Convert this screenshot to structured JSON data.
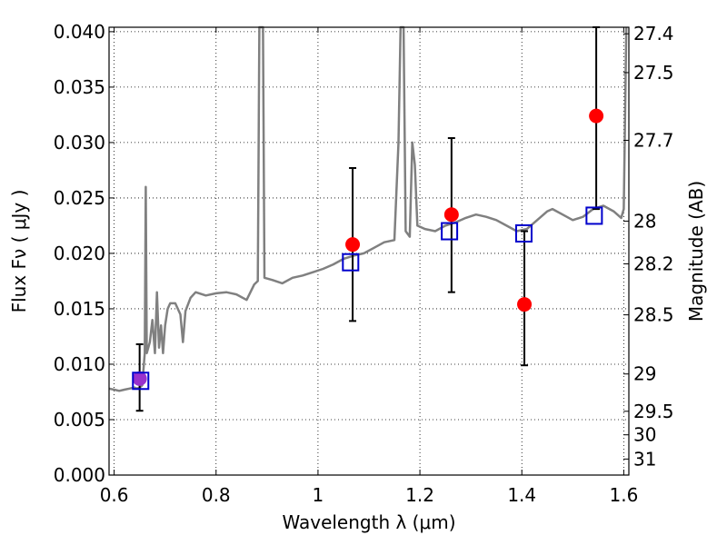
{
  "chart_data": {
    "type": "scatter",
    "xlabel": "Wavelength  λ (μm)",
    "ylabel": "Flux  Fν ( μJy )",
    "ylabel_right": "Magnitude (AB)",
    "xlim": [
      0.59,
      1.61
    ],
    "ylim": [
      0.0,
      0.0404
    ],
    "grid": true,
    "x_ticks": [
      0.6,
      0.8,
      1.0,
      1.2,
      1.4,
      1.6
    ],
    "x_tick_labels": [
      "0.6",
      "0.8",
      "1",
      "1.2",
      "1.4",
      "1.6"
    ],
    "y_ticks": [
      0.0,
      0.005,
      0.01,
      0.015,
      0.02,
      0.025,
      0.03,
      0.035,
      0.04
    ],
    "y_tick_labels": [
      "0.000",
      "0.005",
      "0.010",
      "0.015",
      "0.020",
      "0.025",
      "0.030",
      "0.035",
      "0.040"
    ],
    "mag_ticks": [
      {
        "mag": 27.4,
        "label": "27.4"
      },
      {
        "mag": 27.5,
        "label": "27.5"
      },
      {
        "mag": 27.7,
        "label": "27.7"
      },
      {
        "mag": 28.0,
        "label": "28"
      },
      {
        "mag": 28.2,
        "label": "28.2"
      },
      {
        "mag": 28.5,
        "label": "28.5"
      },
      {
        "mag": 29.0,
        "label": "29"
      },
      {
        "mag": 29.5,
        "label": "29.5"
      },
      {
        "mag": 30.0,
        "label": "30"
      },
      {
        "mag": 31.0,
        "label": "31"
      }
    ],
    "colors": {
      "sed": "#808080",
      "observed": "#ff0000",
      "observed_overlap": "#9932cc",
      "model_box": "#0000cc",
      "errorbar": "#000000",
      "grid": "#000000"
    },
    "model_sed": [
      [
        0.59,
        0.0078
      ],
      [
        0.6,
        0.0077
      ],
      [
        0.61,
        0.0076
      ],
      [
        0.62,
        0.0077
      ],
      [
        0.63,
        0.0078
      ],
      [
        0.64,
        0.0079
      ],
      [
        0.645,
        0.0078
      ],
      [
        0.65,
        0.0079
      ],
      [
        0.655,
        0.0081
      ],
      [
        0.66,
        0.011
      ],
      [
        0.662,
        0.026
      ],
      [
        0.664,
        0.011
      ],
      [
        0.67,
        0.012
      ],
      [
        0.675,
        0.014
      ],
      [
        0.68,
        0.011
      ],
      [
        0.684,
        0.0165
      ],
      [
        0.688,
        0.0115
      ],
      [
        0.692,
        0.0135
      ],
      [
        0.696,
        0.011
      ],
      [
        0.7,
        0.0135
      ],
      [
        0.705,
        0.015
      ],
      [
        0.71,
        0.0155
      ],
      [
        0.72,
        0.0155
      ],
      [
        0.73,
        0.0145
      ],
      [
        0.735,
        0.012
      ],
      [
        0.74,
        0.0148
      ],
      [
        0.75,
        0.016
      ],
      [
        0.76,
        0.0165
      ],
      [
        0.78,
        0.0162
      ],
      [
        0.8,
        0.0164
      ],
      [
        0.82,
        0.0165
      ],
      [
        0.84,
        0.0163
      ],
      [
        0.86,
        0.0158
      ],
      [
        0.875,
        0.0172
      ],
      [
        0.882,
        0.0175
      ],
      [
        0.885,
        0.0404
      ],
      [
        0.892,
        0.0404
      ],
      [
        0.895,
        0.0178
      ],
      [
        0.91,
        0.0176
      ],
      [
        0.93,
        0.0173
      ],
      [
        0.95,
        0.0178
      ],
      [
        0.97,
        0.018
      ],
      [
        0.99,
        0.0183
      ],
      [
        1.01,
        0.0186
      ],
      [
        1.03,
        0.019
      ],
      [
        1.05,
        0.0195
      ],
      [
        1.07,
        0.0198
      ],
      [
        1.09,
        0.02
      ],
      [
        1.11,
        0.0205
      ],
      [
        1.13,
        0.021
      ],
      [
        1.15,
        0.0212
      ],
      [
        1.158,
        0.03
      ],
      [
        1.162,
        0.0404
      ],
      [
        1.168,
        0.0404
      ],
      [
        1.172,
        0.022
      ],
      [
        1.18,
        0.0215
      ],
      [
        1.185,
        0.03
      ],
      [
        1.19,
        0.028
      ],
      [
        1.195,
        0.0225
      ],
      [
        1.21,
        0.0222
      ],
      [
        1.23,
        0.022
      ],
      [
        1.25,
        0.0225
      ],
      [
        1.27,
        0.0228
      ],
      [
        1.29,
        0.0232
      ],
      [
        1.31,
        0.0235
      ],
      [
        1.33,
        0.0233
      ],
      [
        1.35,
        0.023
      ],
      [
        1.37,
        0.0225
      ],
      [
        1.39,
        0.022
      ],
      [
        1.41,
        0.0222
      ],
      [
        1.43,
        0.023
      ],
      [
        1.45,
        0.0238
      ],
      [
        1.46,
        0.024
      ],
      [
        1.48,
        0.0235
      ],
      [
        1.5,
        0.023
      ],
      [
        1.52,
        0.0233
      ],
      [
        1.54,
        0.024
      ],
      [
        1.56,
        0.0243
      ],
      [
        1.58,
        0.0238
      ],
      [
        1.595,
        0.0232
      ],
      [
        1.6,
        0.024
      ],
      [
        1.605,
        0.0404
      ]
    ],
    "observed": [
      {
        "x": 0.65,
        "y": 0.0087,
        "err_lo": 0.0058,
        "err_hi": 0.0118,
        "overlap": true
      },
      {
        "x": 1.068,
        "y": 0.0208,
        "err_lo": 0.0139,
        "err_hi": 0.0277,
        "overlap": false
      },
      {
        "x": 1.262,
        "y": 0.0235,
        "err_lo": 0.0165,
        "err_hi": 0.0304,
        "overlap": false
      },
      {
        "x": 1.405,
        "y": 0.0154,
        "err_lo": 0.0099,
        "err_hi": 0.022,
        "overlap": false
      },
      {
        "x": 1.546,
        "y": 0.0324,
        "err_lo": 0.024,
        "err_hi": 0.0404,
        "overlap": false
      }
    ],
    "model_photometry": [
      {
        "x": 0.652,
        "y": 0.0085
      },
      {
        "x": 1.064,
        "y": 0.0192
      },
      {
        "x": 1.258,
        "y": 0.022
      },
      {
        "x": 1.404,
        "y": 0.0218
      },
      {
        "x": 1.542,
        "y": 0.0234
      }
    ]
  }
}
